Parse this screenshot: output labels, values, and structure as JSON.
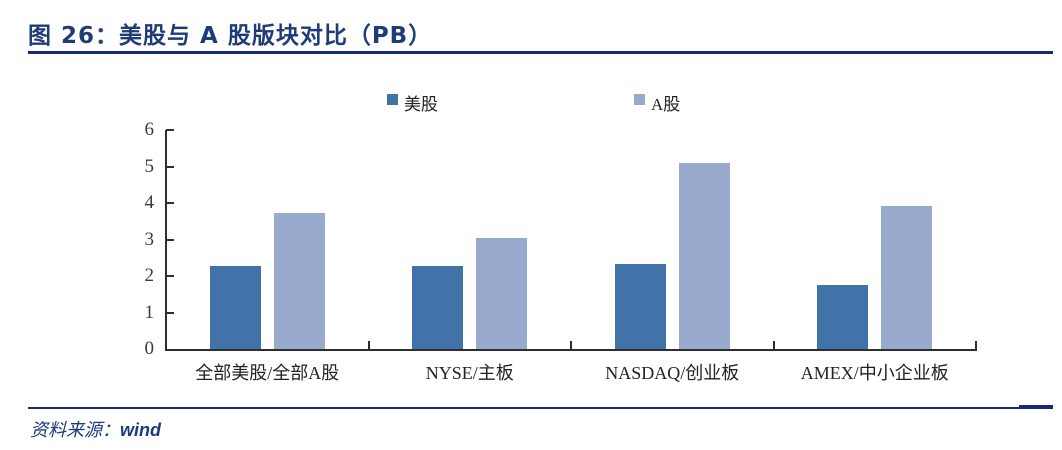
{
  "page": {
    "title": "图 26：美股与 A 股版块对比（PB）",
    "source_label": "资料来源：",
    "source_value": "wind"
  },
  "colors": {
    "rule_navy": "#14287c",
    "title_navy": "#1e3d78",
    "footer_navy": "#1b3a80",
    "axis": "#2e2e2e",
    "us_series": "#4273a8",
    "a_series": "#99aacf"
  },
  "chart_data": {
    "type": "bar",
    "title": "",
    "xlabel": "",
    "ylabel": "",
    "categories": [
      "全部美股/全部A股",
      "NYSE/主板",
      "NASDAQ/创业板",
      "AMEX/中小企业板"
    ],
    "series": [
      {
        "name": "美股",
        "color": "#4273a8",
        "values": [
          2.28,
          2.28,
          2.34,
          1.76
        ]
      },
      {
        "name": "A股",
        "color": "#99aacf",
        "values": [
          3.72,
          3.03,
          5.1,
          3.93
        ]
      }
    ],
    "ylim": [
      0,
      6
    ],
    "yticks": [
      0,
      1,
      2,
      3,
      4,
      5,
      6
    ],
    "grid": false,
    "legend_position": "top"
  }
}
